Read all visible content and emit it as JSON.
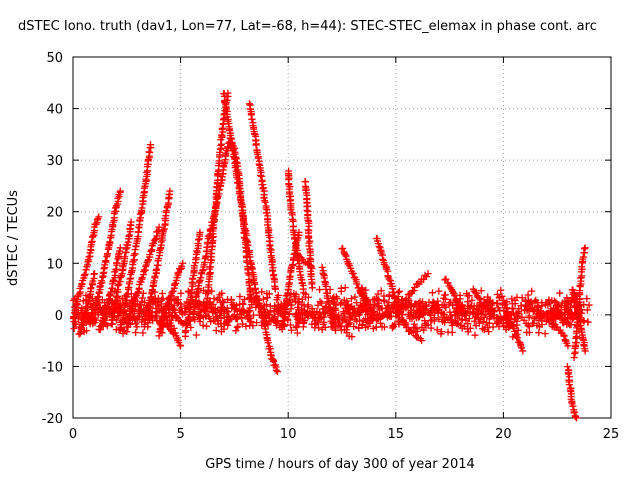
{
  "chart_data": {
    "type": "scatter",
    "title": "dSTEC Iono. truth (dav1, Lon=77, Lat=-68, h=44): STEC-STEC_elemax in phase cont. arc",
    "xlabel": "GPS time / hours of day 300 of year 2014",
    "ylabel": "dSTEC  / TECUs",
    "xlim": [
      0,
      25
    ],
    "ylim": [
      -20,
      50
    ],
    "xticks": [
      "0",
      "5",
      "10",
      "15",
      "20",
      "25"
    ],
    "yticks": [
      "-20",
      "-10",
      "0",
      "10",
      "20",
      "30",
      "40",
      "50"
    ],
    "grid": true,
    "marker": "+",
    "color": "#ff0000",
    "arcs": [
      {
        "x": [
          0.0,
          0.2,
          0.5,
          0.8,
          1.0,
          1.2
        ],
        "y": [
          -1,
          3,
          7,
          12,
          17,
          19
        ]
      },
      {
        "x": [
          0.3,
          0.5,
          0.8,
          1.0
        ],
        "y": [
          -4,
          -1,
          4,
          8
        ]
      },
      {
        "x": [
          0.9,
          1.2,
          1.5,
          1.8,
          2.0,
          2.2
        ],
        "y": [
          -2,
          4,
          10,
          16,
          21,
          24
        ]
      },
      {
        "x": [
          1.2,
          1.5,
          1.8,
          2.0,
          2.2
        ],
        "y": [
          -3,
          0,
          5,
          9,
          13
        ]
      },
      {
        "x": [
          1.8,
          2.0,
          2.3,
          2.6,
          2.7
        ],
        "y": [
          -2,
          3,
          9,
          15,
          18
        ]
      },
      {
        "x": [
          2.2,
          2.5,
          2.8,
          3.1,
          3.4,
          3.6
        ],
        "y": [
          -3,
          3,
          10,
          18,
          26,
          33
        ]
      },
      {
        "x": [
          2.5,
          2.8,
          3.2,
          3.6,
          4.0
        ],
        "y": [
          -3,
          2,
          7,
          12,
          17
        ]
      },
      {
        "x": [
          3.3,
          3.6,
          3.9,
          4.2,
          4.5
        ],
        "y": [
          -2,
          3,
          9,
          16,
          24
        ]
      },
      {
        "x": [
          4.0,
          4.3,
          4.6,
          4.9,
          5.1
        ],
        "y": [
          -4,
          1,
          4,
          8,
          10
        ]
      },
      {
        "x": [
          4.4,
          4.6,
          4.8,
          5.0
        ],
        "y": [
          -2,
          -3,
          -4,
          -6
        ]
      },
      {
        "x": [
          5.2,
          5.4,
          5.6,
          5.9
        ],
        "y": [
          -4,
          0,
          8,
          16
        ]
      },
      {
        "x": [
          6.2,
          6.4,
          6.6,
          6.8,
          7.0,
          7.2
        ],
        "y": [
          1,
          10,
          20,
          30,
          38,
          43
        ]
      },
      {
        "x": [
          5.6,
          5.8,
          6.1,
          6.3,
          6.6,
          6.9,
          7.1,
          7.3,
          7.5,
          7.7,
          7.9,
          8.1,
          8.3
        ],
        "y": [
          0,
          5,
          10,
          15,
          20,
          26,
          31,
          34,
          32,
          27,
          19,
          10,
          2
        ]
      },
      {
        "x": [
          7.0,
          7.2,
          7.5,
          7.8,
          8.1,
          8.4,
          8.6
        ],
        "y": [
          43,
          38,
          30,
          22,
          14,
          7,
          2
        ]
      },
      {
        "x": [
          8.2,
          8.4,
          8.7,
          9.0,
          9.2,
          9.4
        ],
        "y": [
          41,
          36,
          28,
          20,
          12,
          5
        ]
      },
      {
        "x": [
          8.6,
          8.9,
          9.1,
          9.3,
          9.5
        ],
        "y": [
          3,
          -2,
          -6,
          -9,
          -11
        ]
      },
      {
        "x": [
          9.7,
          9.9,
          10.1,
          10.3,
          10.5
        ],
        "y": [
          -3,
          2,
          8,
          12,
          16
        ]
      },
      {
        "x": [
          10.0,
          10.1,
          10.3,
          10.5,
          10.7
        ],
        "y": [
          28,
          22,
          15,
          10,
          5
        ]
      },
      {
        "x": [
          10.8,
          10.9,
          11.0,
          11.1
        ],
        "y": [
          26,
          20,
          13,
          6
        ]
      },
      {
        "x": [
          10.3,
          10.6,
          10.9,
          11.1
        ],
        "y": [
          12,
          11,
          10,
          9
        ]
      },
      {
        "x": [
          11.6,
          11.8,
          12.0,
          12.2
        ],
        "y": [
          9,
          4,
          0,
          -3
        ]
      },
      {
        "x": [
          12.5,
          12.8,
          13.1,
          13.4,
          13.7
        ],
        "y": [
          13,
          10,
          7,
          4,
          1
        ]
      },
      {
        "x": [
          13.4,
          13.6,
          13.8,
          14.0
        ],
        "y": [
          5,
          3,
          2,
          0
        ]
      },
      {
        "x": [
          14.1,
          14.4,
          14.7,
          15.0,
          15.3
        ],
        "y": [
          15,
          11,
          7,
          3,
          0
        ]
      },
      {
        "x": [
          15.3,
          15.6,
          15.9,
          16.2
        ],
        "y": [
          -1,
          -3,
          -4,
          -5
        ]
      },
      {
        "x": [
          15.0,
          15.5,
          16.0,
          16.5
        ],
        "y": [
          0,
          3,
          6,
          8
        ]
      },
      {
        "x": [
          16.8,
          17.2,
          17.6,
          18.0
        ],
        "y": [
          2,
          0,
          -1,
          -2
        ]
      },
      {
        "x": [
          17.3,
          17.6,
          17.9,
          18.2
        ],
        "y": [
          7,
          5,
          2,
          0
        ]
      },
      {
        "x": [
          18.6,
          19.0,
          19.5,
          20.0
        ],
        "y": [
          5,
          2,
          0,
          -1
        ]
      },
      {
        "x": [
          20.0,
          20.3,
          20.6,
          20.9
        ],
        "y": [
          3,
          -1,
          -4,
          -7
        ]
      },
      {
        "x": [
          22.0,
          22.4,
          22.8,
          23.0
        ],
        "y": [
          0,
          -2,
          -4,
          -6
        ]
      },
      {
        "x": [
          23.0,
          23.1,
          23.2,
          23.3,
          23.4
        ],
        "y": [
          -10,
          -14,
          -17,
          -19,
          -20
        ]
      },
      {
        "x": [
          23.3,
          23.4,
          23.5,
          23.6,
          23.7,
          23.8
        ],
        "y": [
          -8,
          -4,
          2,
          7,
          11,
          13
        ]
      },
      {
        "x": [
          23.2,
          23.4,
          23.6,
          23.8
        ],
        "y": [
          5,
          2,
          -2,
          -7
        ]
      }
    ],
    "noise_band": {
      "x": [
        0,
        24
      ],
      "y": [
        -5,
        6
      ]
    }
  }
}
